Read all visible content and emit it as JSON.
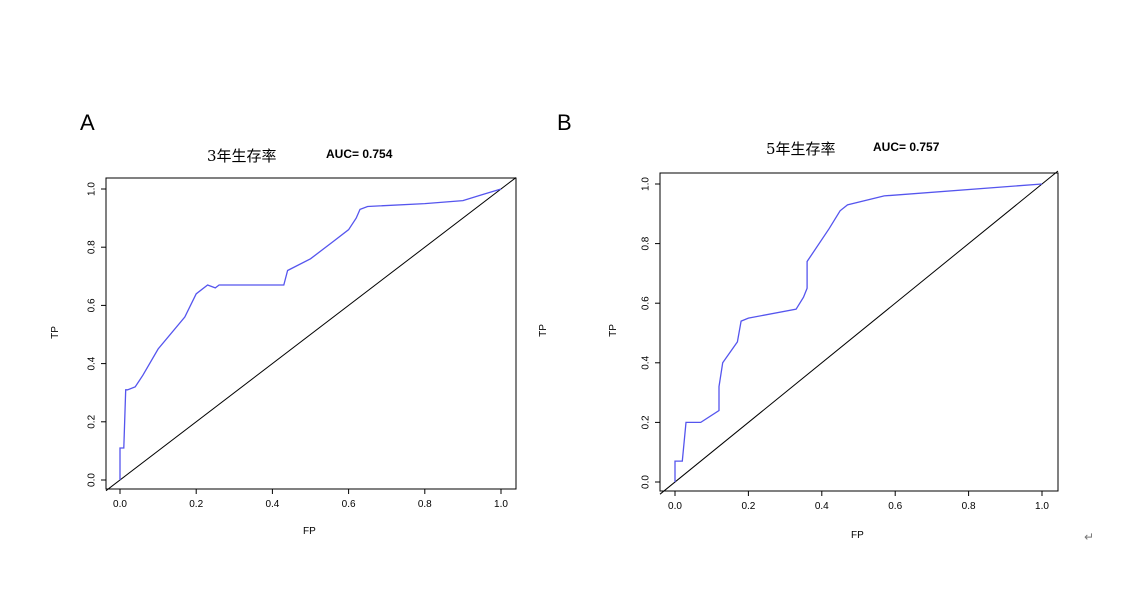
{
  "chart_data": [
    {
      "type": "line",
      "panel": "A",
      "title": "3年生存率",
      "annotation": "AUC= 0.754",
      "xlabel": "FP",
      "ylabel": "TP",
      "xlim": [
        0,
        1
      ],
      "ylim": [
        0,
        1
      ],
      "xticks": [
        "0.0",
        "0.2",
        "0.4",
        "0.6",
        "0.8",
        "1.0"
      ],
      "yticks": [
        "0.0",
        "0.2",
        "0.4",
        "0.6",
        "0.8",
        "1.0"
      ],
      "series": [
        {
          "color": "#5555ee",
          "x": [
            0.0,
            0.0,
            0.01,
            0.015,
            0.02,
            0.04,
            0.06,
            0.1,
            0.17,
            0.2,
            0.23,
            0.25,
            0.26,
            0.3,
            0.36,
            0.42,
            0.43,
            0.44,
            0.5,
            0.56,
            0.6,
            0.62,
            0.63,
            0.65,
            0.8,
            0.9,
            0.95,
            1.0
          ],
          "y": [
            0.0,
            0.11,
            0.11,
            0.31,
            0.31,
            0.32,
            0.36,
            0.45,
            0.56,
            0.64,
            0.67,
            0.66,
            0.67,
            0.67,
            0.67,
            0.67,
            0.67,
            0.72,
            0.76,
            0.82,
            0.86,
            0.9,
            0.93,
            0.94,
            0.95,
            0.96,
            0.98,
            1.0
          ]
        }
      ],
      "reference_line": {
        "x": [
          0,
          1
        ],
        "y": [
          0,
          1
        ],
        "color": "#000000"
      }
    },
    {
      "type": "line",
      "panel": "B",
      "title": "5年生存率",
      "annotation": "AUC= 0.757",
      "xlabel": "FP",
      "ylabel": "TP",
      "xlim": [
        0,
        1
      ],
      "ylim": [
        0,
        1
      ],
      "xticks": [
        "0.0",
        "0.2",
        "0.4",
        "0.6",
        "0.8",
        "1.0"
      ],
      "yticks": [
        "0.0",
        "0.2",
        "0.4",
        "0.6",
        "0.8",
        "1.0"
      ],
      "series": [
        {
          "color": "#5555ee",
          "x": [
            0.0,
            0.0,
            0.02,
            0.03,
            0.07,
            0.12,
            0.12,
            0.13,
            0.17,
            0.18,
            0.2,
            0.33,
            0.35,
            0.36,
            0.36,
            0.42,
            0.45,
            0.47,
            0.57,
            1.0
          ],
          "y": [
            0.0,
            0.07,
            0.07,
            0.2,
            0.2,
            0.24,
            0.32,
            0.4,
            0.47,
            0.54,
            0.55,
            0.58,
            0.62,
            0.65,
            0.74,
            0.85,
            0.91,
            0.93,
            0.96,
            1.0
          ]
        }
      ],
      "reference_line": {
        "x": [
          0,
          1
        ],
        "y": [
          0,
          1
        ],
        "color": "#000000"
      }
    }
  ],
  "labels": {
    "panel_a": "A",
    "panel_b": "B",
    "corner_mark": "↵"
  }
}
